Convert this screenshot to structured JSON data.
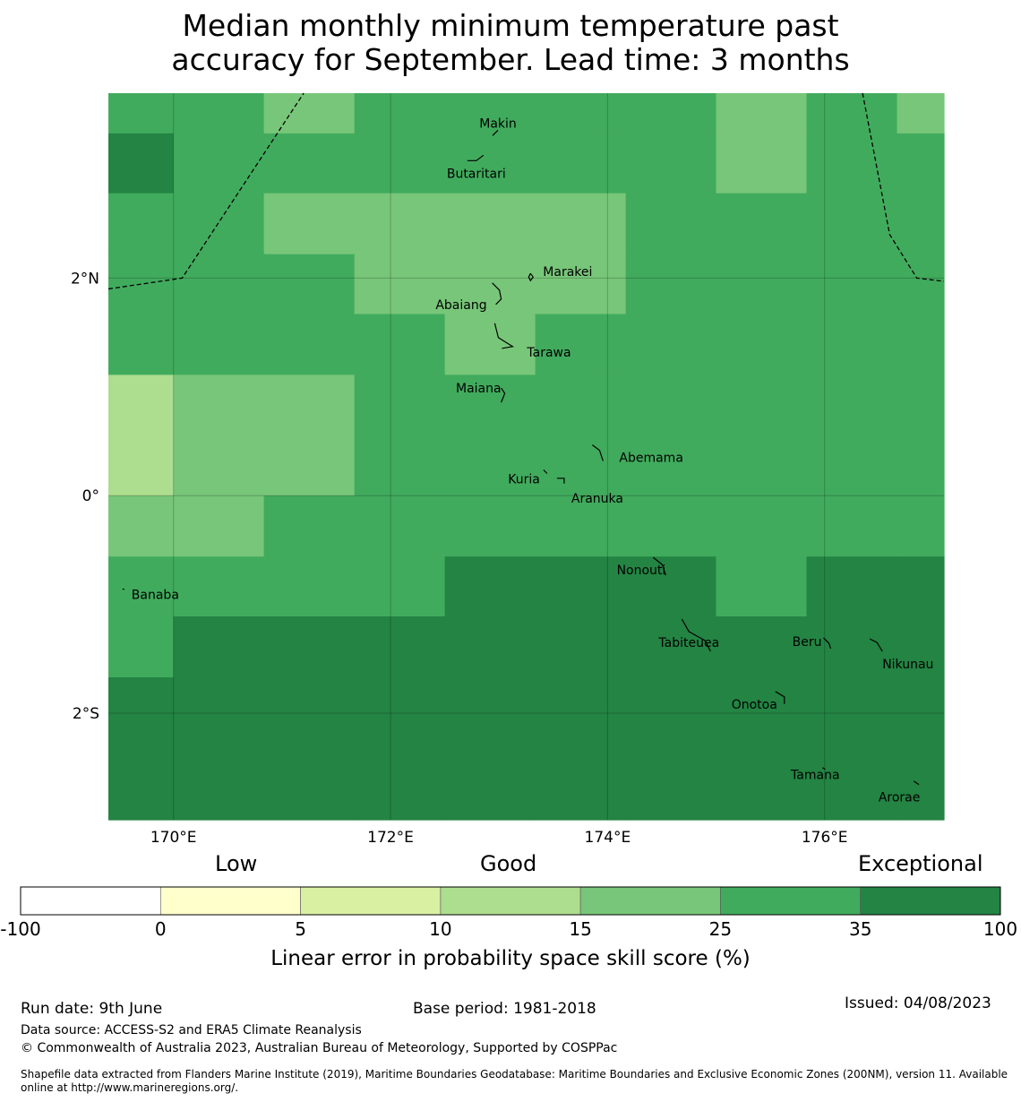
{
  "title_line1": "Median monthly minimum temperature past",
  "title_line2": "accuracy for September. Lead time: 3 months",
  "map": {
    "lon_range": [
      169.4,
      177.1
    ],
    "lat_range": [
      -2.98,
      3.7
    ],
    "lon_ticks": [
      {
        "value": 170,
        "label": "170°E"
      },
      {
        "value": 172,
        "label": "172°E"
      },
      {
        "value": 174,
        "label": "174°E"
      },
      {
        "value": 176,
        "label": "176°E"
      }
    ],
    "lat_ticks": [
      {
        "value": 2,
        "label": "2°N"
      },
      {
        "value": 0,
        "label": "0°"
      },
      {
        "value": -2,
        "label": "2°S"
      }
    ],
    "grid_lon_edges": [
      169.4,
      170.0,
      170.833,
      171.667,
      172.5,
      173.333,
      174.167,
      175.0,
      175.833,
      176.667,
      177.1
    ],
    "grid_lat_edges": [
      3.7,
      3.33,
      2.78,
      2.22,
      1.67,
      1.11,
      0.0,
      -0.56,
      -1.11,
      -1.67,
      -2.98
    ],
    "skill_classes": [
      [
        5,
        5,
        4,
        5,
        5,
        5,
        5,
        4,
        5,
        4
      ],
      [
        6,
        5,
        5,
        5,
        5,
        5,
        5,
        4,
        5,
        5
      ],
      [
        5,
        5,
        4,
        4,
        4,
        4,
        5,
        5,
        5,
        5
      ],
      [
        5,
        5,
        5,
        4,
        4,
        4,
        5,
        5,
        5,
        5
      ],
      [
        5,
        5,
        5,
        5,
        4,
        5,
        5,
        5,
        5,
        5
      ],
      [
        3,
        4,
        4,
        5,
        5,
        5,
        5,
        5,
        5,
        5
      ],
      [
        4,
        4,
        5,
        5,
        5,
        5,
        5,
        5,
        5,
        5
      ],
      [
        5,
        5,
        5,
        5,
        6,
        6,
        6,
        5,
        6,
        6
      ],
      [
        5,
        6,
        6,
        6,
        6,
        6,
        6,
        6,
        6,
        6
      ],
      [
        6,
        6,
        6,
        6,
        6,
        6,
        6,
        6,
        6,
        6
      ]
    ],
    "islands": [
      {
        "name": "Makin",
        "lon": 172.99,
        "lat": 3.36
      },
      {
        "name": "Butaritari",
        "lon": 172.79,
        "lat": 3.08
      },
      {
        "name": "Marakei",
        "lon": 173.29,
        "lat": 2.01
      },
      {
        "name": "Abaiang",
        "lon": 172.97,
        "lat": 1.84
      },
      {
        "name": "Tarawa",
        "lon": 173.01,
        "lat": 1.42
      },
      {
        "name": "Maiana",
        "lon": 173.02,
        "lat": 0.94
      },
      {
        "name": "Abemama",
        "lon": 173.86,
        "lat": 0.4
      },
      {
        "name": "Kuria",
        "lon": 173.41,
        "lat": 0.22
      },
      {
        "name": "Aranuka",
        "lon": 173.6,
        "lat": 0.16
      },
      {
        "name": "Banaba",
        "lon": 169.53,
        "lat": -0.86
      },
      {
        "name": "Nonouti",
        "lon": 174.42,
        "lat": -0.6
      },
      {
        "name": "Tabiteuea",
        "lon": 174.75,
        "lat": -1.3
      },
      {
        "name": "Beru",
        "lon": 175.99,
        "lat": -1.34
      },
      {
        "name": "Nikunau",
        "lon": 176.45,
        "lat": -1.35
      },
      {
        "name": "Onotoa",
        "lon": 175.58,
        "lat": -1.85
      },
      {
        "name": "Tamana",
        "lon": 175.98,
        "lat": -2.5
      },
      {
        "name": "Arorae",
        "lon": 176.82,
        "lat": -2.64
      }
    ],
    "eez_boundary_west": [
      [
        169.4,
        1.9
      ],
      [
        170.08,
        2.0
      ],
      [
        171.2,
        3.7
      ]
    ],
    "eez_boundary_east": [
      [
        176.35,
        3.7
      ],
      [
        176.6,
        2.4
      ],
      [
        176.85,
        2.0
      ],
      [
        177.1,
        1.97
      ]
    ]
  },
  "colorbar": {
    "categories": [
      {
        "label": "Low",
        "center_value": "0"
      },
      {
        "label": "Good",
        "center_value": "15"
      },
      {
        "label": "Exceptional",
        "center_value": "100"
      }
    ],
    "classes": [
      {
        "from": "-100",
        "to": "0",
        "color": "#ffffff"
      },
      {
        "from": "0",
        "to": "5",
        "color": "#ffffcc"
      },
      {
        "from": "5",
        "to": "10",
        "color": "#d9f0a3"
      },
      {
        "from": "10",
        "to": "15",
        "color": "#addd8e"
      },
      {
        "from": "15",
        "to": "25",
        "color": "#78c679"
      },
      {
        "from": "25",
        "to": "35",
        "color": "#41ab5d"
      },
      {
        "from": "35",
        "to": "100",
        "color": "#238443"
      }
    ],
    "tick_labels": [
      "-100",
      "0",
      "5",
      "10",
      "15",
      "25",
      "35",
      "100"
    ],
    "label": "Linear error in probability space skill score (%)"
  },
  "footer": {
    "run_date": "Run date: 9th June",
    "base_period": "Base period: 1981-2018",
    "issued": "Issued: 04/08/2023",
    "data_source": "Data source: ACCESS-S2 and ERA5 Climate Reanalysis",
    "copyright": "© Commonwealth of Australia 2023, Australian Bureau of Meteorology, Supported by COSPPac",
    "shapefile": "Shapefile data extracted from Flanders Marine Institute (2019), Maritime Boundaries Geodatabase: Maritime Boundaries and Exclusive Economic Zones (200NM), version 11. Available online at http://www.marineregions.org/."
  }
}
